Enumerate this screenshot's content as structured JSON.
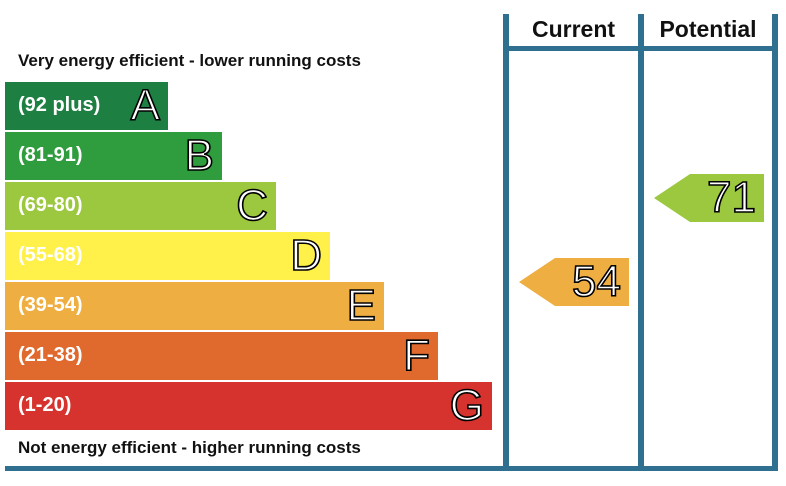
{
  "chart_data": {
    "type": "bar",
    "caption_top": "Very energy efficient - lower running costs",
    "caption_bottom": "Not energy efficient - higher running costs",
    "bands": [
      {
        "range": "(92 plus)",
        "letter": "A",
        "color": "#1e7f42"
      },
      {
        "range": "(81-91)",
        "letter": "B",
        "color": "#2f9d3e"
      },
      {
        "range": "(69-80)",
        "letter": "C",
        "color": "#9cc83f"
      },
      {
        "range": "(55-68)",
        "letter": "D",
        "color": "#fff04a"
      },
      {
        "range": "(39-54)",
        "letter": "E",
        "color": "#efae41"
      },
      {
        "range": "(21-38)",
        "letter": "F",
        "color": "#e0692d"
      },
      {
        "range": "(1-20)",
        "letter": "G",
        "color": "#d6332e"
      }
    ],
    "columns": {
      "current": "Current",
      "potential": "Potential"
    },
    "current": {
      "value": "54",
      "band": "E",
      "color": "#efae41"
    },
    "potential": {
      "value": "71",
      "band": "C",
      "color": "#9cc83f"
    }
  }
}
